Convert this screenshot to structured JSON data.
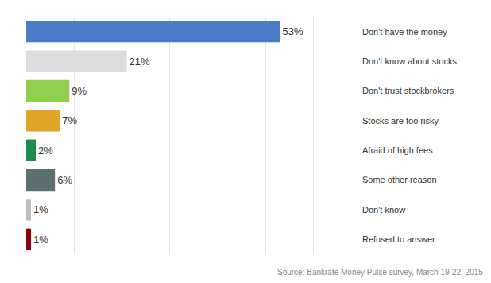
{
  "chart_data": {
    "type": "bar",
    "orientation": "horizontal",
    "categories": [
      "Don't have the money",
      "Don't know about stocks",
      "Don't trust stockbrokers",
      "Stocks are too risky",
      "Afraid of high fees",
      "Some other reason",
      "Don't know",
      "Refused to answer"
    ],
    "values": [
      53,
      21,
      9,
      7,
      2,
      6,
      1,
      1
    ],
    "value_labels": [
      "53%",
      "21%",
      "9%",
      "7%",
      "2%",
      "6%",
      "1%",
      "1%"
    ],
    "colors": [
      "#4a7cc7",
      "#dcdcdc",
      "#8fd14f",
      "#e0a526",
      "#1e8c4e",
      "#5b7070",
      "#bdbdbd",
      "#8b0000"
    ],
    "xlim": [
      0,
      70
    ],
    "xticks": [
      0,
      10,
      20,
      30,
      40,
      50,
      60,
      70
    ],
    "grid": true,
    "tick_labels": "y",
    "data_labels": true,
    "annotations": [
      "Source: Bankrate Money Pulse survey, March 19-22, 2015"
    ]
  }
}
